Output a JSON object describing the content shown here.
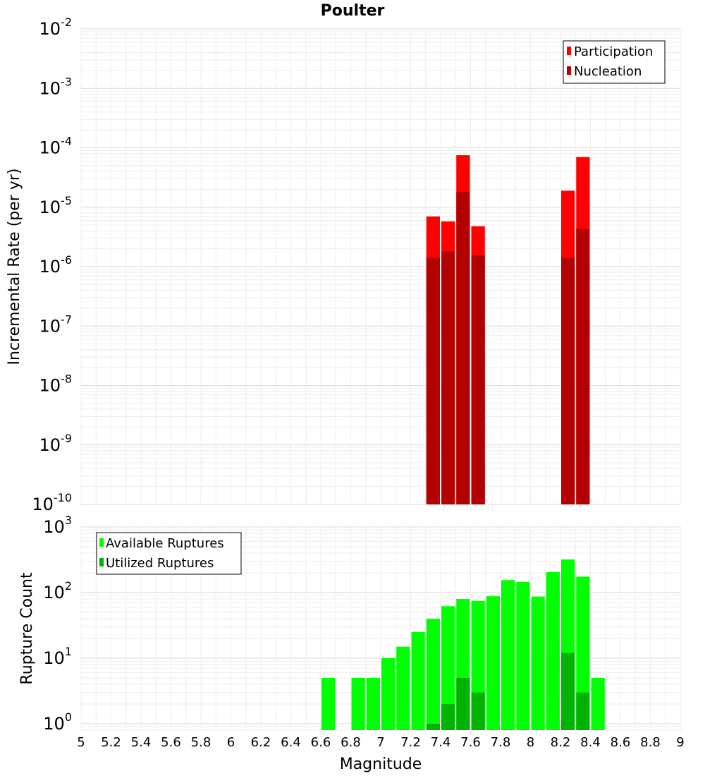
{
  "chart_data": [
    {
      "type": "bar",
      "title": "Poulter",
      "xlabel": "",
      "ylabel": "Incremental Rate (per yr)",
      "yscale": "log",
      "ylim": [
        1e-10,
        0.01
      ],
      "xlim": [
        5,
        9
      ],
      "bin_width": 0.1,
      "legend_position": "top-right",
      "series": [
        {
          "name": "Participation",
          "color": "#ff0000",
          "x": [
            7.35,
            7.45,
            7.55,
            7.65,
            8.25,
            8.35
          ],
          "values": [
            7e-06,
            5.8e-06,
            7.5e-05,
            4.8e-06,
            1.9e-05,
            7e-05
          ]
        },
        {
          "name": "Nucleation",
          "color": "#b30000",
          "x": [
            7.35,
            7.45,
            7.55,
            7.65,
            8.25,
            8.35
          ],
          "values": [
            1.4e-06,
            1.8e-06,
            1.8e-05,
            1.55e-06,
            1.4e-06,
            4.3e-06
          ]
        }
      ],
      "y_ticks": [
        {
          "base": "10",
          "exp": "-10"
        },
        {
          "base": "10",
          "exp": "-9"
        },
        {
          "base": "10",
          "exp": "-8"
        },
        {
          "base": "10",
          "exp": "-7"
        },
        {
          "base": "10",
          "exp": "-6"
        },
        {
          "base": "10",
          "exp": "-5"
        },
        {
          "base": "10",
          "exp": "-4"
        },
        {
          "base": "10",
          "exp": "-3"
        },
        {
          "base": "10",
          "exp": "-2"
        }
      ]
    },
    {
      "type": "bar",
      "title": "",
      "xlabel": "Magnitude",
      "ylabel": "Rupture Count",
      "yscale": "log",
      "ylim": [
        0.8,
        1000
      ],
      "xlim": [
        5,
        9
      ],
      "bin_width": 0.1,
      "legend_position": "top-left",
      "series": [
        {
          "name": "Available Ruptures",
          "color": "#00ff00",
          "x": [
            6.65,
            6.85,
            6.95,
            7.05,
            7.15,
            7.25,
            7.35,
            7.45,
            7.55,
            7.65,
            7.75,
            7.85,
            7.95,
            8.05,
            8.15,
            8.25,
            8.35,
            8.45
          ],
          "values": [
            5,
            5,
            5,
            10,
            15,
            25,
            40,
            62,
            80,
            75,
            88,
            155,
            145,
            87,
            205,
            320,
            175,
            5
          ]
        },
        {
          "name": "Utilized Ruptures",
          "color": "#00b300",
          "x": [
            7.35,
            7.45,
            7.55,
            7.65,
            8.25,
            8.35
          ],
          "values": [
            1,
            2,
            5,
            3,
            12,
            3
          ]
        }
      ],
      "y_ticks": [
        {
          "base": "10",
          "exp": "0"
        },
        {
          "base": "10",
          "exp": "1"
        },
        {
          "base": "10",
          "exp": "2"
        },
        {
          "base": "10",
          "exp": "3"
        }
      ]
    }
  ],
  "x_ticks": [
    "5",
    "5.2",
    "5.4",
    "5.6",
    "5.8",
    "6",
    "6.2",
    "6.4",
    "6.6",
    "6.8",
    "7",
    "7.2",
    "7.4",
    "7.6",
    "7.8",
    "8",
    "8.2",
    "8.4",
    "8.6",
    "8.8",
    "9"
  ],
  "x_tick_values": [
    5,
    5.2,
    5.4,
    5.6,
    5.8,
    6,
    6.2,
    6.4,
    6.6,
    6.8,
    7,
    7.2,
    7.4,
    7.6,
    7.8,
    8,
    8.2,
    8.4,
    8.6,
    8.8,
    9
  ]
}
